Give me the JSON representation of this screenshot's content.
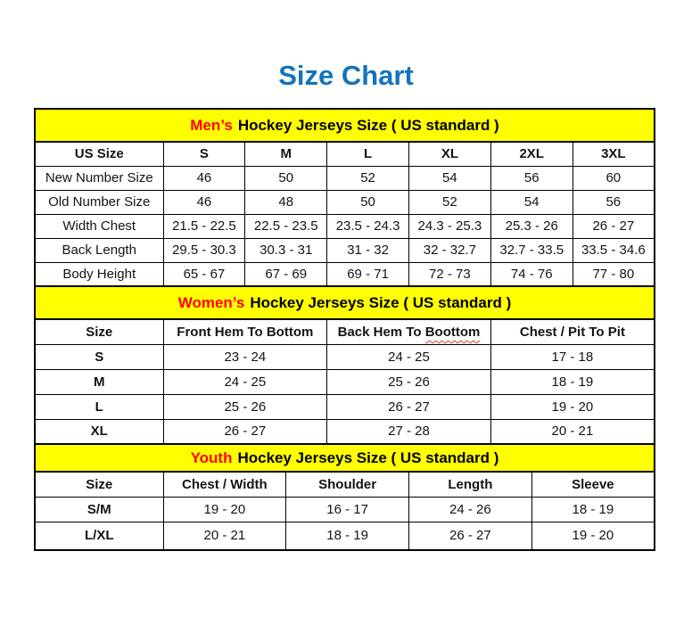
{
  "title": {
    "text": "Size Chart"
  },
  "colors": {
    "title_blue": "#1274BD",
    "banner_yellow": "#FFFF00",
    "highlight_red": "#FF0000",
    "squiggle_red": "#D93A2B",
    "border_black": "#000000"
  },
  "sections": [
    {
      "id": "mens",
      "banner_highlight": "Men’s",
      "banner_rest": "Hockey Jerseys Size ( US standard )",
      "columns": [
        {
          "label": "US Size"
        },
        {
          "label": "S"
        },
        {
          "label": "M"
        },
        {
          "label": "L"
        },
        {
          "label": "XL"
        },
        {
          "label": "2XL"
        },
        {
          "label": "3XL"
        }
      ],
      "rows": [
        {
          "label": "New Number Size",
          "values": [
            "46",
            "50",
            "52",
            "54",
            "56",
            "60"
          ]
        },
        {
          "label": "Old Number Size",
          "values": [
            "46",
            "48",
            "50",
            "52",
            "54",
            "56"
          ]
        },
        {
          "label": "Width Chest",
          "values": [
            "21.5 - 22.5",
            "22.5 - 23.5",
            "23.5 - 24.3",
            "24.3 - 25.3",
            "25.3 - 26",
            "26 - 27"
          ]
        },
        {
          "label": "Back Length",
          "values": [
            "29.5 - 30.3",
            "30.3 - 31",
            "31 - 32",
            "32 - 32.7",
            "32.7 - 33.5",
            "33.5 - 34.6"
          ]
        },
        {
          "label": "Body Height",
          "values": [
            "65 - 67",
            "67 - 69",
            "69 - 71",
            "72 - 73",
            "74 - 76",
            "77 - 80"
          ]
        }
      ]
    },
    {
      "id": "womens",
      "banner_highlight": "Women’s",
      "banner_rest": "Hockey Jerseys Size ( US standard )",
      "columns": [
        {
          "label": "Size"
        },
        {
          "label": "Front Hem To Bottom"
        },
        {
          "label": "Back Hem To Boottom",
          "misspelled_word": "Boottom"
        },
        {
          "label": "Chest / Pit To Pit"
        }
      ],
      "rows": [
        {
          "label": "S",
          "values": [
            "23 - 24",
            "24 - 25",
            "17 - 18"
          ]
        },
        {
          "label": "M",
          "values": [
            "24 - 25",
            "25 - 26",
            "18 - 19"
          ]
        },
        {
          "label": "L",
          "values": [
            "25 - 26",
            "26 - 27",
            "19 - 20"
          ]
        },
        {
          "label": "XL",
          "values": [
            "26 - 27",
            "27 - 28",
            "20 - 21"
          ]
        }
      ]
    },
    {
      "id": "youth",
      "banner_highlight": "Youth",
      "banner_rest": "Hockey Jerseys Size ( US standard )",
      "columns": [
        {
          "label": "Size"
        },
        {
          "label": "Chest / Width"
        },
        {
          "label": "Shoulder"
        },
        {
          "label": "Length"
        },
        {
          "label": "Sleeve"
        }
      ],
      "rows": [
        {
          "label": "S/M",
          "values": [
            "19 - 20",
            "16 - 17",
            "24 - 26",
            "18 - 19"
          ]
        },
        {
          "label": "L/XL",
          "values": [
            "20 - 21",
            "18 - 19",
            "26 - 27",
            "19 - 20"
          ]
        }
      ]
    }
  ]
}
